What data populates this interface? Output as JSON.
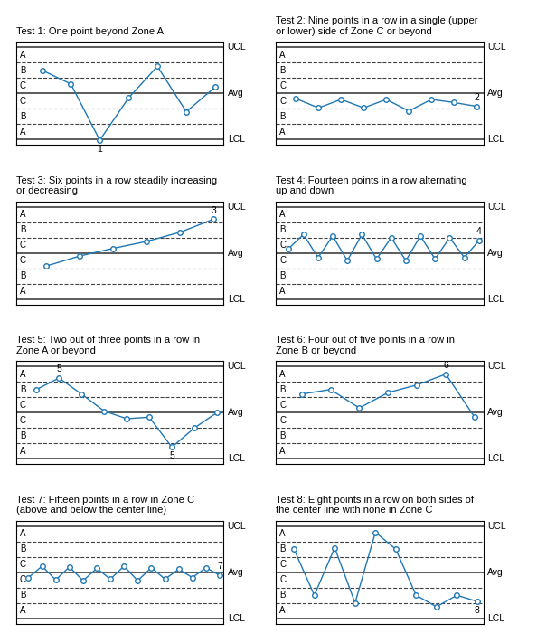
{
  "chart_data": [
    {
      "type": "line",
      "title": "Test 1: One point beyond Zone A",
      "x": [
        1,
        2,
        3,
        4,
        5,
        6,
        7
      ],
      "values": [
        1.5,
        0.6,
        -3.05,
        -0.3,
        1.75,
        -1.2,
        0.4
      ],
      "marker": "o",
      "xlim": [
        0.1,
        7.3
      ],
      "ylim": [
        -3.35,
        3.35
      ],
      "xticks": [],
      "yticks": [],
      "tick_labels": false,
      "annotations": [
        {
          "x": 3,
          "label": "1"
        }
      ],
      "lines": [
        {
          "y": 3.0,
          "line_style": "solid",
          "label": "UCL"
        },
        {
          "y": 2.0,
          "line_style": "dashed"
        },
        {
          "y": 1.0,
          "line_style": "dashed"
        },
        {
          "y": 0.0,
          "line_style": "solid",
          "label": "Avg"
        },
        {
          "y": -1.0,
          "line_style": "dashed"
        },
        {
          "y": -2.0,
          "line_style": "dashed"
        },
        {
          "y": -3.0,
          "line_style": "solid",
          "label": "LCL"
        }
      ],
      "zone_labels": [
        {
          "y": 2.5,
          "label": "A"
        },
        {
          "y": 1.5,
          "label": "B"
        },
        {
          "y": 0.5,
          "label": "C"
        },
        {
          "y": -0.5,
          "label": "C"
        },
        {
          "y": -1.5,
          "label": "B"
        },
        {
          "y": -2.5,
          "label": "A"
        }
      ]
    },
    {
      "type": "line",
      "title": "Test 2: Nine points in a row in a single (upper",
      "subtitle": "or lower) side of Zone C or beyond",
      "x": [
        1,
        2,
        3,
        4,
        5,
        6,
        7,
        8,
        9
      ],
      "values": [
        -0.35,
        -0.95,
        -0.4,
        -0.95,
        -0.4,
        -1.15,
        -0.4,
        -0.6,
        -0.85
      ],
      "marker": "o",
      "xlim": [
        0.1,
        9.3
      ],
      "ylim": [
        -3.35,
        3.35
      ],
      "xticks": [],
      "yticks": [],
      "tick_labels": false,
      "annotations": [
        {
          "x": 9,
          "label": "2"
        }
      ],
      "lines": [
        {
          "y": 3.0,
          "line_style": "solid",
          "label": "UCL"
        },
        {
          "y": 2.0,
          "line_style": "dashed"
        },
        {
          "y": 1.0,
          "line_style": "dashed"
        },
        {
          "y": 0.0,
          "line_style": "solid",
          "label": "Avg"
        },
        {
          "y": -1.0,
          "line_style": "dashed"
        },
        {
          "y": -2.0,
          "line_style": "dashed"
        },
        {
          "y": -3.0,
          "line_style": "solid",
          "label": "LCL"
        }
      ],
      "zone_labels": [
        {
          "y": 2.5,
          "label": "A"
        },
        {
          "y": 1.5,
          "label": "B"
        },
        {
          "y": 0.5,
          "label": "C"
        },
        {
          "y": -0.5,
          "label": "C"
        },
        {
          "y": -1.5,
          "label": "B"
        },
        {
          "y": -2.5,
          "label": "A"
        }
      ]
    },
    {
      "type": "line",
      "title": "Test 3: Six points in a row steadily increasing",
      "subtitle": "or decreasing",
      "x": [
        1,
        2,
        3,
        4,
        5,
        6
      ],
      "values": [
        -0.85,
        -0.2,
        0.3,
        0.75,
        1.35,
        2.2
      ],
      "marker": "o",
      "xlim": [
        0.1,
        6.3
      ],
      "ylim": [
        -3.35,
        3.35
      ],
      "xticks": [],
      "yticks": [],
      "tick_labels": false,
      "annotations": [
        {
          "x": 6,
          "label": "3"
        }
      ],
      "lines": [
        {
          "y": 3.0,
          "line_style": "solid",
          "label": "UCL"
        },
        {
          "y": 2.0,
          "line_style": "dashed"
        },
        {
          "y": 1.0,
          "line_style": "dashed"
        },
        {
          "y": 0.0,
          "line_style": "solid",
          "label": "Avg"
        },
        {
          "y": -1.0,
          "line_style": "dashed"
        },
        {
          "y": -2.0,
          "line_style": "dashed"
        },
        {
          "y": -3.0,
          "line_style": "solid",
          "label": "LCL"
        }
      ],
      "zone_labels": [
        {
          "y": 2.5,
          "label": "A"
        },
        {
          "y": 1.5,
          "label": "B"
        },
        {
          "y": 0.5,
          "label": "C"
        },
        {
          "y": -0.5,
          "label": "C"
        },
        {
          "y": -1.5,
          "label": "B"
        },
        {
          "y": -2.5,
          "label": "A"
        }
      ]
    },
    {
      "type": "line",
      "title": "Test 4: Fourteen points in a row alternating",
      "subtitle": "up and down",
      "x": [
        1,
        2,
        3,
        4,
        5,
        6,
        7,
        8,
        9,
        10,
        11,
        12,
        13,
        14
      ],
      "values": [
        0.3,
        1.2,
        -0.3,
        1.1,
        -0.5,
        1.2,
        -0.4,
        1.0,
        -0.5,
        1.1,
        -0.4,
        1.0,
        -0.3,
        0.8
      ],
      "marker": "o",
      "xlim": [
        0.1,
        14.3
      ],
      "ylim": [
        -3.35,
        3.35
      ],
      "xticks": [],
      "yticks": [],
      "tick_labels": false,
      "annotations": [
        {
          "x": 14,
          "label": "4"
        }
      ],
      "lines": [
        {
          "y": 3.0,
          "line_style": "solid",
          "label": "UCL"
        },
        {
          "y": 2.0,
          "line_style": "dashed"
        },
        {
          "y": 1.0,
          "line_style": "dashed"
        },
        {
          "y": 0.0,
          "line_style": "solid",
          "label": "Avg"
        },
        {
          "y": -1.0,
          "line_style": "dashed"
        },
        {
          "y": -2.0,
          "line_style": "dashed"
        },
        {
          "y": -3.0,
          "line_style": "solid",
          "label": "LCL"
        }
      ],
      "zone_labels": [
        {
          "y": 2.5,
          "label": "A"
        },
        {
          "y": 1.5,
          "label": "B"
        },
        {
          "y": 0.5,
          "label": "C"
        },
        {
          "y": -0.5,
          "label": "C"
        },
        {
          "y": -1.5,
          "label": "B"
        },
        {
          "y": -2.5,
          "label": "A"
        }
      ]
    },
    {
      "type": "line",
      "title": "Test 5: Two out of three points in a row in",
      "subtitle": "Zone A or beyond",
      "x": [
        1,
        2,
        3,
        4,
        5,
        6,
        7,
        8,
        9
      ],
      "values": [
        1.5,
        2.25,
        1.2,
        0.1,
        -0.4,
        -0.3,
        -2.25,
        -1.0,
        0.0
      ],
      "marker": "o",
      "xlim": [
        0.1,
        9.3
      ],
      "ylim": [
        -3.35,
        3.35
      ],
      "xticks": [],
      "yticks": [],
      "tick_labels": false,
      "annotations": [
        {
          "x": 2,
          "label": "5"
        },
        {
          "x": 7,
          "label": "5"
        }
      ],
      "lines": [
        {
          "y": 3.0,
          "line_style": "solid",
          "label": "UCL"
        },
        {
          "y": 2.0,
          "line_style": "dashed"
        },
        {
          "y": 1.0,
          "line_style": "dashed"
        },
        {
          "y": 0.0,
          "line_style": "solid",
          "label": "Avg"
        },
        {
          "y": -1.0,
          "line_style": "dashed"
        },
        {
          "y": -2.0,
          "line_style": "dashed"
        },
        {
          "y": -3.0,
          "line_style": "solid",
          "label": "LCL"
        }
      ],
      "zone_labels": [
        {
          "y": 2.5,
          "label": "A"
        },
        {
          "y": 1.5,
          "label": "B"
        },
        {
          "y": 0.5,
          "label": "C"
        },
        {
          "y": -0.5,
          "label": "C"
        },
        {
          "y": -1.5,
          "label": "B"
        },
        {
          "y": -2.5,
          "label": "A"
        }
      ]
    },
    {
      "type": "line",
      "title": "Test 6: Four out of five points in a row in",
      "subtitle": "Zone B or beyond",
      "x": [
        1,
        2,
        3,
        4,
        5,
        6,
        7
      ],
      "values": [
        1.2,
        1.5,
        0.3,
        1.3,
        1.8,
        2.5,
        -0.3
      ],
      "marker": "o",
      "xlim": [
        0.1,
        7.3
      ],
      "ylim": [
        -3.35,
        3.35
      ],
      "xticks": [],
      "yticks": [],
      "tick_labels": false,
      "annotations": [
        {
          "x": 6,
          "label": "6"
        }
      ],
      "lines": [
        {
          "y": 3.0,
          "line_style": "solid",
          "label": "UCL"
        },
        {
          "y": 2.0,
          "line_style": "dashed"
        },
        {
          "y": 1.0,
          "line_style": "dashed"
        },
        {
          "y": 0.0,
          "line_style": "solid",
          "label": "Avg"
        },
        {
          "y": -1.0,
          "line_style": "dashed"
        },
        {
          "y": -2.0,
          "line_style": "dashed"
        },
        {
          "y": -3.0,
          "line_style": "solid",
          "label": "LCL"
        }
      ],
      "zone_labels": [
        {
          "y": 2.5,
          "label": "A"
        },
        {
          "y": 1.5,
          "label": "B"
        },
        {
          "y": 0.5,
          "label": "C"
        },
        {
          "y": -0.5,
          "label": "C"
        },
        {
          "y": -1.5,
          "label": "B"
        },
        {
          "y": -2.5,
          "label": "A"
        }
      ]
    },
    {
      "type": "line",
      "title": "Test 7: Fifteen points in a row in Zone C",
      "subtitle": "(above and below the center line)",
      "x": [
        1,
        2,
        3,
        4,
        5,
        6,
        7,
        8,
        9,
        10,
        11,
        12,
        13,
        14,
        15
      ],
      "values": [
        -0.35,
        0.4,
        -0.5,
        0.35,
        -0.55,
        0.25,
        -0.45,
        0.4,
        -0.55,
        0.3,
        -0.45,
        0.2,
        -0.35,
        0.3,
        -0.2
      ],
      "marker": "o",
      "xlim": [
        0.1,
        15.3
      ],
      "ylim": [
        -3.35,
        3.35
      ],
      "xticks": [],
      "yticks": [],
      "tick_labels": false,
      "annotations": [
        {
          "x": 15,
          "label": "7"
        }
      ],
      "lines": [
        {
          "y": 3.0,
          "line_style": "solid",
          "label": "UCL"
        },
        {
          "y": 2.0,
          "line_style": "dashed"
        },
        {
          "y": 1.0,
          "line_style": "dashed"
        },
        {
          "y": 0.0,
          "line_style": "solid",
          "label": "Avg"
        },
        {
          "y": -1.0,
          "line_style": "dashed"
        },
        {
          "y": -2.0,
          "line_style": "dashed"
        },
        {
          "y": -3.0,
          "line_style": "solid",
          "label": "LCL"
        }
      ],
      "zone_labels": [
        {
          "y": 2.5,
          "label": "A"
        },
        {
          "y": 1.5,
          "label": "B"
        },
        {
          "y": 0.5,
          "label": "C"
        },
        {
          "y": -0.5,
          "label": "C"
        },
        {
          "y": -1.5,
          "label": "B"
        },
        {
          "y": -2.5,
          "label": "A"
        }
      ]
    },
    {
      "type": "line",
      "title": "Test 8: Eight points in a row on both sides of",
      "subtitle": "the center line with none in Zone C",
      "x": [
        1,
        2,
        3,
        4,
        5,
        6,
        7,
        8,
        9,
        10
      ],
      "values": [
        1.5,
        -1.5,
        1.6,
        -2.0,
        2.6,
        1.5,
        -1.5,
        -2.25,
        -1.5,
        -1.9
      ],
      "marker": "o",
      "xlim": [
        0.1,
        10.3
      ],
      "ylim": [
        -3.35,
        3.35
      ],
      "xticks": [],
      "yticks": [],
      "tick_labels": false,
      "annotations": [
        {
          "x": 10,
          "label": "8"
        }
      ],
      "lines": [
        {
          "y": 3.0,
          "line_style": "solid",
          "label": "UCL"
        },
        {
          "y": 2.0,
          "line_style": "dashed"
        },
        {
          "y": 1.0,
          "line_style": "dashed"
        },
        {
          "y": 0.0,
          "line_style": "solid",
          "label": "Avg"
        },
        {
          "y": -1.0,
          "line_style": "dashed"
        },
        {
          "y": -2.0,
          "line_style": "dashed"
        },
        {
          "y": -3.0,
          "line_style": "solid",
          "label": "LCL"
        }
      ],
      "zone_labels": [
        {
          "y": 2.5,
          "label": "A"
        },
        {
          "y": 1.5,
          "label": "B"
        },
        {
          "y": 0.5,
          "label": "C"
        },
        {
          "y": -0.5,
          "label": "C"
        },
        {
          "y": -1.5,
          "label": "B"
        },
        {
          "y": -2.5,
          "label": "A"
        }
      ]
    }
  ]
}
